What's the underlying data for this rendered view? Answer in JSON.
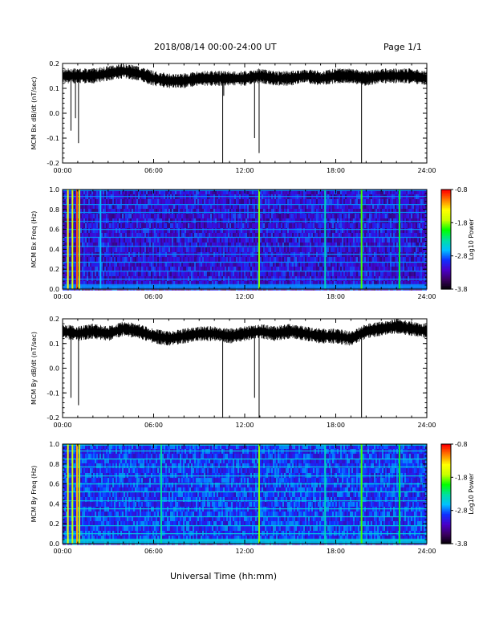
{
  "header": {
    "title": "2018/08/14  00:00-24:00 UT",
    "page": "Page 1/1"
  },
  "x_axis_title": "Universal Time (hh:mm)",
  "colorbar": {
    "label": "Log10 Power",
    "ticks": [
      "-0.8",
      "-1.8",
      "-2.8",
      "-3.8"
    ],
    "colors": [
      "#000000",
      "#3a0060",
      "#4a00c8",
      "#1030ff",
      "#00c0ff",
      "#00e0a0",
      "#00ff00",
      "#c8ff00",
      "#ffff00",
      "#ff8000",
      "#ff0000"
    ]
  },
  "chart_data": [
    {
      "type": "line",
      "ylabel": "MCM Bx dB/dt (nT/sec)",
      "xlim": [
        0,
        24
      ],
      "ylim": [
        -0.2,
        0.2
      ],
      "x_ticks": [
        "00:00",
        "06:00",
        "12:00",
        "18:00",
        "24:00"
      ],
      "y_ticks": [
        "0.2",
        "0.1",
        "0.0",
        "-0.1",
        "-0.2"
      ],
      "baseline": 0.14,
      "series": [
        {
          "values": [
            [
              0,
              0.15
            ],
            [
              1,
              0.15
            ],
            [
              2,
              0.15
            ],
            [
              3,
              0.16
            ],
            [
              4,
              0.17
            ],
            [
              5,
              0.16
            ],
            [
              6,
              0.14
            ],
            [
              7,
              0.13
            ],
            [
              8,
              0.13
            ],
            [
              9,
              0.14
            ],
            [
              10,
              0.14
            ],
            [
              11,
              0.14
            ],
            [
              12,
              0.14
            ],
            [
              13,
              0.15
            ],
            [
              14,
              0.14
            ],
            [
              15,
              0.14
            ],
            [
              16,
              0.15
            ],
            [
              17,
              0.14
            ],
            [
              18,
              0.15
            ],
            [
              19,
              0.15
            ],
            [
              20,
              0.14
            ],
            [
              21,
              0.15
            ],
            [
              22,
              0.15
            ],
            [
              23,
              0.15
            ],
            [
              24,
              0.14
            ]
          ],
          "spikes": [
            [
              0.55,
              -0.07
            ],
            [
              0.85,
              -0.02
            ],
            [
              1.05,
              -0.12
            ],
            [
              10.55,
              -0.2
            ],
            [
              10.62,
              0.07
            ],
            [
              12.65,
              -0.1
            ],
            [
              12.95,
              -0.16
            ],
            [
              19.7,
              -0.2
            ]
          ]
        }
      ]
    },
    {
      "type": "heatmap",
      "ylabel": "MCM Bx Freq (Hz)",
      "xlim": [
        0,
        24
      ],
      "ylim": [
        0,
        1
      ],
      "x_ticks": [
        "00:00",
        "06:00",
        "12:00",
        "18:00",
        "24:00"
      ],
      "y_ticks": [
        "1.0",
        "0.8",
        "0.6",
        "0.4",
        "0.2",
        "0.0"
      ],
      "clim": [
        -3.8,
        -0.8
      ],
      "background_log_power": -3.1,
      "harmonic_freqs_hz": [
        0.03,
        0.1,
        0.18,
        0.27,
        0.35,
        0.43,
        0.52,
        0.6,
        0.68,
        0.77,
        0.85,
        0.93,
        0.99
      ],
      "harmonic_log_power": -2.7,
      "vertical_events": [
        {
          "t": 0.35,
          "log_power": -1.4
        },
        {
          "t": 0.65,
          "log_power": -1.6
        },
        {
          "t": 0.95,
          "log_power": -1.0
        },
        {
          "t": 1.1,
          "log_power": -1.6
        },
        {
          "t": 2.5,
          "log_power": -2.6
        },
        {
          "t": 12.95,
          "log_power": -1.8
        },
        {
          "t": 17.3,
          "log_power": -2.4
        },
        {
          "t": 19.7,
          "log_power": -1.9
        },
        {
          "t": 22.2,
          "log_power": -2.1
        }
      ]
    },
    {
      "type": "line",
      "ylabel": "MCM By dB/dt (nT/sec)",
      "xlim": [
        0,
        24
      ],
      "ylim": [
        -0.2,
        0.2
      ],
      "x_ticks": [
        "00:00",
        "06:00",
        "12:00",
        "18:00",
        "24:00"
      ],
      "y_ticks": [
        "0.2",
        "0.1",
        "0.0",
        "-0.1",
        "-0.2"
      ],
      "baseline": 0.14,
      "series": [
        {
          "values": [
            [
              0,
              0.15
            ],
            [
              1,
              0.14
            ],
            [
              2,
              0.15
            ],
            [
              3,
              0.14
            ],
            [
              4,
              0.16
            ],
            [
              5,
              0.15
            ],
            [
              6,
              0.13
            ],
            [
              7,
              0.12
            ],
            [
              8,
              0.13
            ],
            [
              9,
              0.14
            ],
            [
              10,
              0.14
            ],
            [
              11,
              0.13
            ],
            [
              12,
              0.14
            ],
            [
              13,
              0.15
            ],
            [
              14,
              0.14
            ],
            [
              15,
              0.15
            ],
            [
              16,
              0.14
            ],
            [
              17,
              0.13
            ],
            [
              18,
              0.13
            ],
            [
              19,
              0.12
            ],
            [
              20,
              0.15
            ],
            [
              21,
              0.16
            ],
            [
              22,
              0.17
            ],
            [
              23,
              0.16
            ],
            [
              24,
              0.15
            ]
          ],
          "spikes": [
            [
              0.55,
              -0.12
            ],
            [
              1.05,
              -0.15
            ],
            [
              10.55,
              -0.2
            ],
            [
              12.65,
              -0.12
            ],
            [
              12.95,
              -0.2
            ],
            [
              19.7,
              -0.2
            ]
          ]
        }
      ]
    },
    {
      "type": "heatmap",
      "ylabel": "MCM By Freq (Hz)",
      "xlim": [
        0,
        24
      ],
      "ylim": [
        0,
        1
      ],
      "x_ticks": [
        "00:00",
        "06:00",
        "12:00",
        "18:00",
        "24:00"
      ],
      "y_ticks": [
        "1.0",
        "0.8",
        "0.6",
        "0.4",
        "0.2",
        "0.0"
      ],
      "clim": [
        -3.8,
        -0.8
      ],
      "background_log_power": -2.9,
      "harmonic_freqs_hz": [
        0.03,
        0.1,
        0.18,
        0.27,
        0.35,
        0.43,
        0.52,
        0.6,
        0.68,
        0.77,
        0.85,
        0.93,
        0.99
      ],
      "harmonic_log_power": -2.5,
      "vertical_events": [
        {
          "t": 0.35,
          "log_power": -1.5
        },
        {
          "t": 0.65,
          "log_power": -1.7
        },
        {
          "t": 0.95,
          "log_power": -1.2
        },
        {
          "t": 1.1,
          "log_power": -1.7
        },
        {
          "t": 6.5,
          "log_power": -2.3
        },
        {
          "t": 12.95,
          "log_power": -1.8
        },
        {
          "t": 17.3,
          "log_power": -2.4
        },
        {
          "t": 19.7,
          "log_power": -1.9
        },
        {
          "t": 22.2,
          "log_power": -2.1
        }
      ]
    }
  ]
}
